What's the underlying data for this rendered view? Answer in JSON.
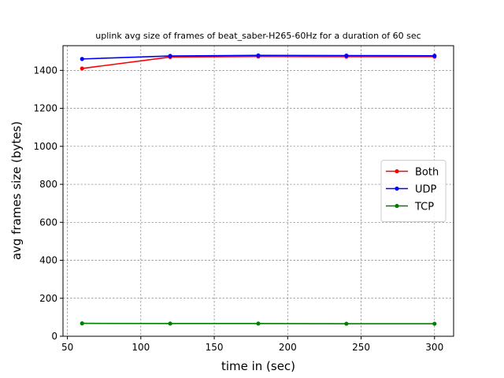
{
  "chart_data": {
    "type": "line",
    "title": "uplink avg size of frames of beat_saber-H265-60Hz for a duration of 60 sec",
    "xlabel": "time in (sec)",
    "ylabel": "avg frames size (bytes)",
    "x": [
      60,
      120,
      180,
      240,
      300
    ],
    "xlim": [
      47,
      313
    ],
    "ylim": [
      0,
      1530
    ],
    "xticks": [
      50,
      100,
      150,
      200,
      250,
      300
    ],
    "yticks": [
      0,
      200,
      400,
      600,
      800,
      1000,
      1200,
      1400
    ],
    "grid": true,
    "legend_position": "center-right",
    "series": [
      {
        "name": "Both",
        "color": "#ff0000",
        "values": [
          1410,
          1470,
          1473,
          1472,
          1472
        ]
      },
      {
        "name": "UDP",
        "color": "#0000ff",
        "values": [
          1460,
          1476,
          1479,
          1478,
          1477
        ]
      },
      {
        "name": "TCP",
        "color": "#008000",
        "values": [
          68,
          67,
          67,
          66,
          66
        ]
      }
    ]
  }
}
